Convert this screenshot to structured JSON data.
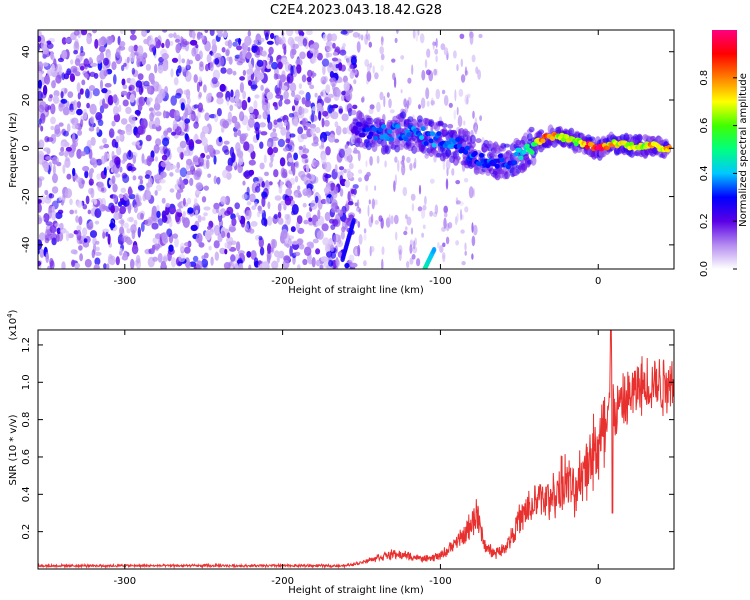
{
  "title": "C2E4.2023.043.18.42.G28",
  "chart_data": [
    {
      "type": "heatmap",
      "xlabel": "Height of straight line (km)",
      "ylabel": "Frequency (Hz)",
      "xlim": [
        -355,
        48
      ],
      "ylim": [
        -50,
        49
      ],
      "xticks": [
        -300,
        -200,
        -100,
        0
      ],
      "yticks": [
        40,
        20,
        0,
        -20,
        -40
      ],
      "grid": false,
      "colorbar": {
        "label": "Normalized spectral amplitude",
        "range": [
          0.0,
          1.0
        ],
        "ticks": [
          0.0,
          0.2,
          0.4,
          0.6,
          0.8
        ],
        "colors": [
          "#ffffff",
          "#b48cf0",
          "#5a00e6",
          "#0000ff",
          "#00c8ff",
          "#00ff80",
          "#40ff00",
          "#ffff00",
          "#ff8000",
          "#ff0000",
          "#ff0080"
        ]
      },
      "noise_region": {
        "x": [
          -355,
          -153
        ],
        "amplitude": [
          0.1,
          0.3
        ]
      },
      "streak": {
        "x": [
          -162,
          -155
        ],
        "y": [
          -46,
          -30
        ]
      },
      "streak2": {
        "x": [
          -110,
          -104
        ],
        "y": [
          -50,
          -42
        ]
      },
      "ridge": {
        "x": [
          -155,
          -145,
          -135,
          -125,
          -115,
          -105,
          -95,
          -85,
          -75,
          -65,
          -55,
          -50,
          -45,
          -40,
          -35,
          -30,
          -25,
          -20,
          -15,
          -10,
          -5,
          0,
          5,
          10,
          15,
          20,
          25,
          30,
          35,
          40,
          45
        ],
        "y": [
          8,
          7,
          6,
          7,
          6,
          4,
          3,
          0,
          -4,
          -6,
          -5,
          -3,
          0,
          2,
          4,
          5,
          5,
          4,
          3,
          2,
          1,
          0,
          1,
          2,
          2,
          1,
          1,
          1,
          1,
          0,
          0
        ],
        "amplitude": [
          0.2,
          0.3,
          0.35,
          0.35,
          0.35,
          0.35,
          0.35,
          0.3,
          0.35,
          0.3,
          0.3,
          0.4,
          0.5,
          0.6,
          0.8,
          0.85,
          0.7,
          0.7,
          0.6,
          0.7,
          0.9,
          0.9,
          0.8,
          0.7,
          0.65,
          0.7,
          0.7,
          0.65,
          0.8,
          0.7,
          0.8
        ]
      }
    },
    {
      "type": "line",
      "xlabel": "Height of straight line (km)",
      "ylabel": "SNR (10 * v/v)",
      "yscale_label": "(x10",
      "yscale_exp": "4",
      "yscale_close": ")",
      "xlim": [
        -355,
        48
      ],
      "ylim": [
        0.0,
        1.28
      ],
      "xticks": [
        -300,
        -200,
        -100,
        0
      ],
      "yticks": [
        0.2,
        0.4,
        0.6,
        0.8,
        1.0,
        1.2
      ],
      "grid": false,
      "series": [
        {
          "color": "#e8302e",
          "x": [
            -355,
            -300,
            -250,
            -200,
            -160,
            -150,
            -140,
            -130,
            -120,
            -110,
            -100,
            -95,
            -90,
            -85,
            -80,
            -77,
            -75,
            -72,
            -70,
            -65,
            -60,
            -55,
            -50,
            -45,
            -40,
            -35,
            -30,
            -25,
            -20,
            -15,
            -10,
            -5,
            0,
            5,
            8,
            10,
            15,
            20,
            25,
            30,
            35,
            40,
            45,
            48
          ],
          "y": [
            0.02,
            0.02,
            0.02,
            0.02,
            0.02,
            0.04,
            0.07,
            0.09,
            0.08,
            0.06,
            0.08,
            0.12,
            0.16,
            0.2,
            0.28,
            0.36,
            0.25,
            0.15,
            0.12,
            0.1,
            0.12,
            0.2,
            0.3,
            0.35,
            0.4,
            0.45,
            0.42,
            0.5,
            0.55,
            0.45,
            0.6,
            0.7,
            0.75,
            0.85,
            1.28,
            0.95,
            1.0,
            1.05,
            1.1,
            1.12,
            1.15,
            1.12,
            1.16,
            1.15
          ]
        }
      ]
    }
  ]
}
